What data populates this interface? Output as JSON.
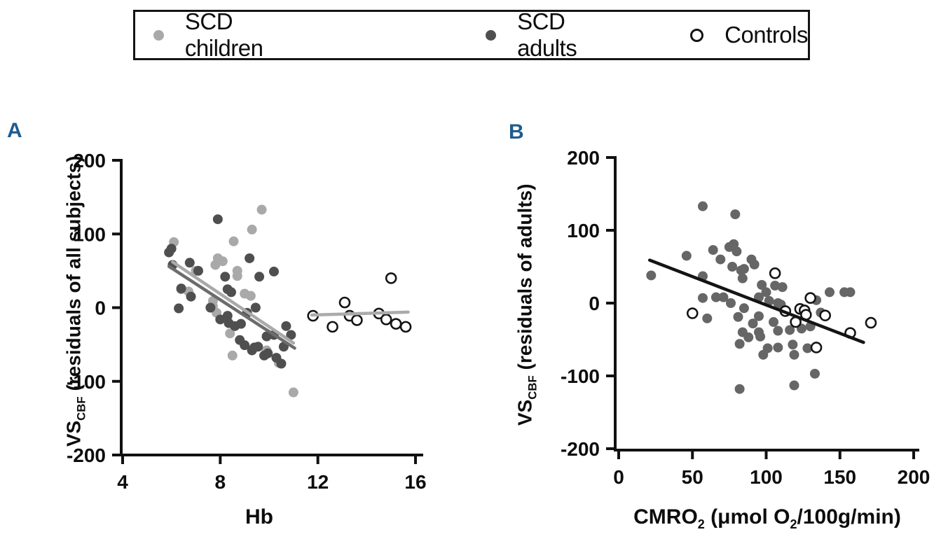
{
  "figure": {
    "legend": {
      "items": [
        {
          "label": "SCD children",
          "marker": "filled",
          "color": "#a9a9a9"
        },
        {
          "label": "SCD adults",
          "marker": "filled",
          "color": "#4f4f4f"
        },
        {
          "label": "Controls",
          "marker": "open",
          "color": "#ffffff",
          "stroke": "#141414"
        }
      ]
    },
    "accent_color": "#1f5c8f",
    "axis_color": "#111111"
  },
  "chart_data": [
    {
      "type": "scatter",
      "panel": "A",
      "xlabel": "Hb",
      "ylabel": "VS_CBF (residuals of all subjects)",
      "ylabel_parts": {
        "main": "VS",
        "sub": "CBF",
        "rest": " (residuals of all subjects)"
      },
      "xlim": [
        4,
        16
      ],
      "ylim": [
        -200,
        200
      ],
      "xticks": [
        4,
        8,
        12,
        16
      ],
      "yticks": [
        200,
        100,
        0,
        -100,
        -200
      ],
      "grid": false,
      "series": [
        {
          "name": "SCD children",
          "marker": "filled",
          "color": "#a9a9a9",
          "points": [
            [
              6.1,
              89
            ],
            [
              6.4,
              25
            ],
            [
              6.7,
              22
            ],
            [
              7.0,
              50
            ],
            [
              7.7,
              9
            ],
            [
              7.7,
              2
            ],
            [
              7.85,
              -7
            ],
            [
              7.8,
              58
            ],
            [
              7.9,
              67
            ],
            [
              8.1,
              63
            ],
            [
              8.4,
              -35
            ],
            [
              8.5,
              -65
            ],
            [
              8.55,
              90
            ],
            [
              8.7,
              50
            ],
            [
              8.7,
              43
            ],
            [
              9.0,
              19
            ],
            [
              9.25,
              16
            ],
            [
              9.3,
              106
            ],
            [
              9.7,
              133
            ],
            [
              9.9,
              -58
            ],
            [
              10.4,
              -75
            ],
            [
              11.0,
              -115
            ]
          ]
        },
        {
          "name": "SCD adults",
          "marker": "filled",
          "color": "#4f4f4f",
          "points": [
            [
              5.9,
              75
            ],
            [
              6.0,
              80
            ],
            [
              6.05,
              58
            ],
            [
              6.3,
              -1
            ],
            [
              6.4,
              26
            ],
            [
              6.75,
              61
            ],
            [
              6.8,
              15
            ],
            [
              7.1,
              50
            ],
            [
              7.6,
              0
            ],
            [
              7.9,
              120
            ],
            [
              8.0,
              -16
            ],
            [
              8.2,
              42
            ],
            [
              8.3,
              25
            ],
            [
              8.3,
              -11
            ],
            [
              8.35,
              -21
            ],
            [
              8.45,
              21
            ],
            [
              8.6,
              -25
            ],
            [
              8.8,
              -44
            ],
            [
              8.85,
              -22
            ],
            [
              9.0,
              -51
            ],
            [
              9.1,
              -7
            ],
            [
              9.2,
              67
            ],
            [
              9.3,
              -58
            ],
            [
              9.4,
              -54
            ],
            [
              9.45,
              0
            ],
            [
              9.55,
              -53
            ],
            [
              9.6,
              42
            ],
            [
              9.8,
              -65
            ],
            [
              9.95,
              -62
            ],
            [
              9.9,
              -39
            ],
            [
              10.2,
              49
            ],
            [
              10.2,
              -37
            ],
            [
              10.3,
              -68
            ],
            [
              10.5,
              -76
            ],
            [
              10.6,
              -53
            ],
            [
              10.7,
              -25
            ],
            [
              10.9,
              -37
            ]
          ]
        },
        {
          "name": "Controls",
          "marker": "open",
          "color": "#141414",
          "points": [
            [
              11.8,
              -11
            ],
            [
              12.6,
              -26
            ],
            [
              13.1,
              7
            ],
            [
              13.3,
              -11
            ],
            [
              13.6,
              -17
            ],
            [
              14.5,
              -8
            ],
            [
              14.8,
              -16
            ],
            [
              15.0,
              40
            ],
            [
              15.2,
              -22
            ],
            [
              15.6,
              -26
            ]
          ]
        }
      ],
      "trend_lines": [
        {
          "name": "scd-children-fit",
          "color": "#a9a9a9",
          "from": [
            6.05,
            62
          ],
          "to": [
            11.0,
            -48
          ]
        },
        {
          "name": "scd-adults-fit",
          "color": "#6c6c6c",
          "from": [
            5.9,
            56
          ],
          "to": [
            11.05,
            -55
          ]
        },
        {
          "name": "controls-fit",
          "color": "#ababab",
          "from": [
            11.75,
            -10
          ],
          "to": [
            15.7,
            -6
          ]
        }
      ]
    },
    {
      "type": "scatter",
      "panel": "B",
      "xlabel": "CMRO2 (μmol O2/100g/min)",
      "xlabel_parts": {
        "p1": "CMRO",
        "s1": "2",
        "p2": " (μmol O",
        "s2": "2",
        "p3": "/100g/min)"
      },
      "ylabel": "VS_CBF (residuals of adults)",
      "ylabel_parts": {
        "main": "VS",
        "sub": "CBF",
        "rest": " (residuals of adults)"
      },
      "xlim": [
        0,
        200
      ],
      "ylim": [
        -200,
        200
      ],
      "xticks": [
        0,
        50,
        100,
        150,
        200
      ],
      "yticks": [
        200,
        100,
        0,
        -100,
        -200
      ],
      "grid": false,
      "series": [
        {
          "name": "SCD adults",
          "marker": "filled",
          "color": "#666666",
          "points": [
            [
              22,
              38
            ],
            [
              46,
              65
            ],
            [
              57,
              133
            ],
            [
              57,
              37
            ],
            [
              57,
              7
            ],
            [
              60,
              -21
            ],
            [
              64,
              73
            ],
            [
              66,
              8
            ],
            [
              69,
              60
            ],
            [
              71,
              8
            ],
            [
              75,
              77
            ],
            [
              76,
              0
            ],
            [
              77,
              50
            ],
            [
              78,
              81
            ],
            [
              79,
              122
            ],
            [
              80,
              71
            ],
            [
              81,
              -19
            ],
            [
              82,
              -56
            ],
            [
              82,
              -118
            ],
            [
              83,
              45
            ],
            [
              84,
              34
            ],
            [
              84,
              -40
            ],
            [
              85,
              47
            ],
            [
              85,
              -7
            ],
            [
              88,
              -47
            ],
            [
              90,
              60
            ],
            [
              91,
              -28
            ],
            [
              92,
              53
            ],
            [
              95,
              8
            ],
            [
              95,
              -18
            ],
            [
              95,
              -40
            ],
            [
              96,
              -46
            ],
            [
              97,
              25
            ],
            [
              98,
              -71
            ],
            [
              100,
              15
            ],
            [
              101,
              -62
            ],
            [
              102,
              3
            ],
            [
              105,
              -26
            ],
            [
              106,
              24
            ],
            [
              108,
              0
            ],
            [
              108,
              -38
            ],
            [
              108,
              -61
            ],
            [
              110,
              -2
            ],
            [
              111,
              22
            ],
            [
              116,
              -37
            ],
            [
              118,
              -57
            ],
            [
              119,
              -71
            ],
            [
              119,
              -113
            ],
            [
              124,
              -35
            ],
            [
              128,
              -62
            ],
            [
              130,
              -32
            ],
            [
              133,
              -97
            ],
            [
              134,
              4
            ],
            [
              137,
              -13
            ],
            [
              143,
              15
            ],
            [
              153,
              15
            ],
            [
              157,
              15
            ]
          ]
        },
        {
          "name": "Controls",
          "marker": "open",
          "color": "#141414",
          "points": [
            [
              50,
              -14
            ],
            [
              106,
              41
            ],
            [
              113,
              -11
            ],
            [
              120,
              -26
            ],
            [
              123,
              -8
            ],
            [
              126,
              -10
            ],
            [
              127,
              -16
            ],
            [
              130,
              7
            ],
            [
              134,
              -61
            ],
            [
              140,
              -17
            ],
            [
              157,
              -41
            ],
            [
              171,
              -27
            ]
          ]
        }
      ],
      "trend_lines": [
        {
          "name": "adults-fit",
          "color": "#141414",
          "from": [
            21,
            59
          ],
          "to": [
            166,
            -54
          ]
        }
      ]
    }
  ]
}
